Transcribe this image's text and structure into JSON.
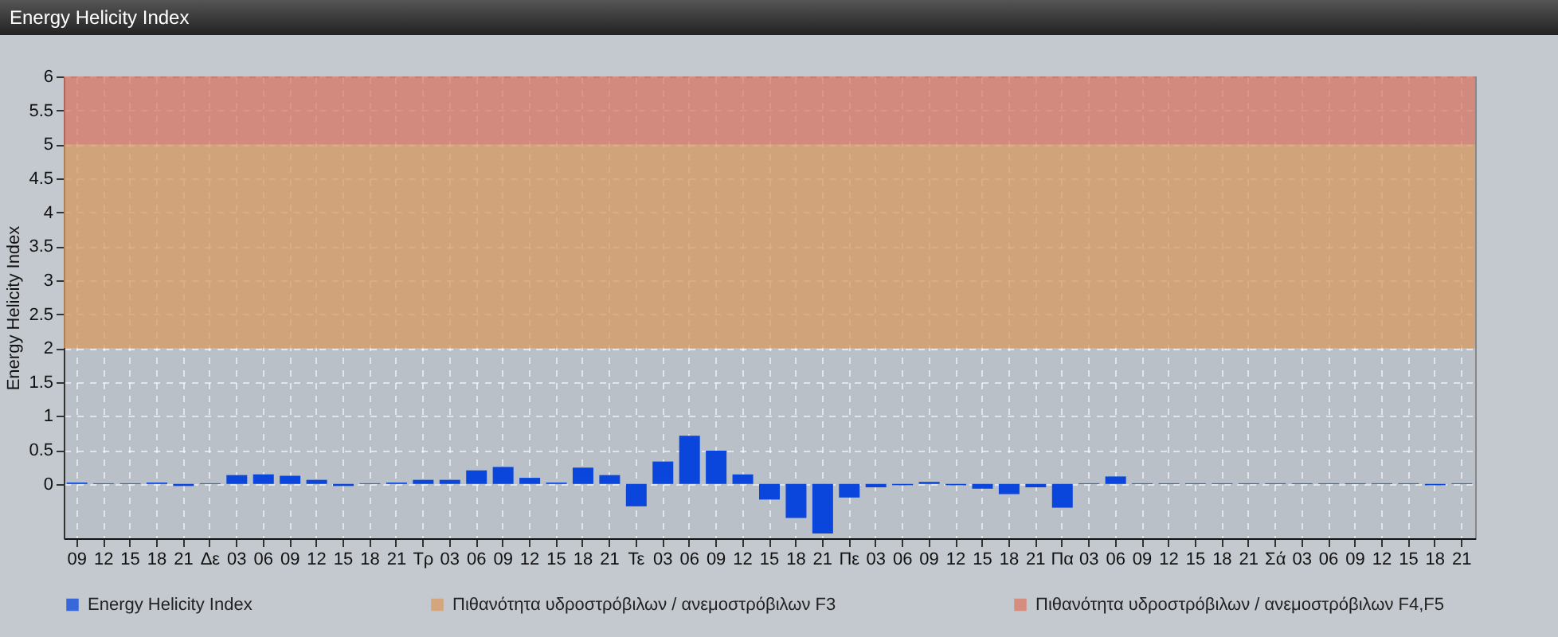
{
  "chart_data": {
    "type": "bar",
    "title": "Energy Helicity Index",
    "ylabel": "Energy Helicity Index",
    "categories": [
      "09",
      "12",
      "15",
      "18",
      "21",
      "Δε",
      "03",
      "06",
      "09",
      "12",
      "15",
      "18",
      "21",
      "Τρ",
      "03",
      "06",
      "09",
      "12",
      "15",
      "18",
      "21",
      "Τε",
      "03",
      "06",
      "09",
      "12",
      "15",
      "18",
      "21",
      "Πε",
      "03",
      "06",
      "09",
      "12",
      "15",
      "18",
      "21",
      "Πα",
      "03",
      "06",
      "09",
      "12",
      "15",
      "18",
      "21",
      "Σά",
      "03",
      "06",
      "09",
      "12",
      "15",
      "18",
      "21"
    ],
    "series": [
      {
        "name": "Energy Helicity Index",
        "color": "#0a46dc",
        "values": [
          0.02,
          0.01,
          0.01,
          0.02,
          -0.03,
          0.01,
          0.13,
          0.14,
          0.12,
          0.06,
          -0.03,
          0.01,
          0.02,
          0.06,
          0.06,
          0.2,
          0.25,
          0.09,
          0.02,
          0.24,
          0.13,
          -0.33,
          0.33,
          0.71,
          0.49,
          0.14,
          -0.23,
          -0.5,
          -0.73,
          -0.2,
          -0.05,
          -0.02,
          0.03,
          -0.02,
          -0.07,
          -0.15,
          -0.05,
          -0.35,
          0.01,
          0.11,
          0.01,
          0.01,
          0.01,
          0.01,
          0.01,
          0.01,
          0.01,
          0.01,
          0.01,
          0.01,
          0.01,
          -0.02,
          0.01
        ]
      }
    ],
    "bands": [
      {
        "axis": "y",
        "from": 2,
        "to": 5,
        "label": "Πιθανότητα υδροστρόβιλων / ανεμοστρόβιλων F3",
        "color": "#d99a62"
      },
      {
        "axis": "y",
        "from": 5,
        "to": 6,
        "label": "Πιθανότητα υδροστρόβιλων / ανεμοστρόβιλων F4,F5",
        "color": "#dc7866"
      }
    ],
    "ylim": [
      -0.8,
      6
    ],
    "yticks": [
      0,
      0.5,
      1,
      1.5,
      2,
      2.5,
      3,
      3.5,
      4,
      4.5,
      5,
      5.5,
      6
    ],
    "grid": true,
    "legend": "bottom left"
  }
}
